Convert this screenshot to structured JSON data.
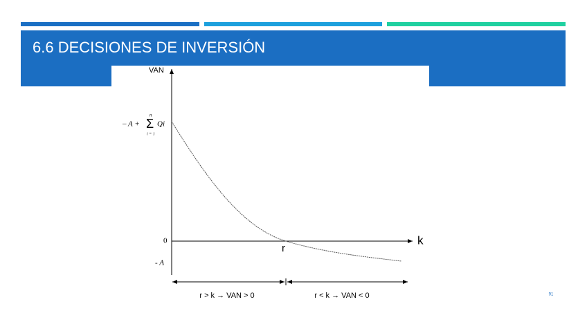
{
  "header": {
    "title": "6.6 DECISIONES DE INVERSIÓN"
  },
  "diagram": {
    "y_axis_label": "VAN",
    "x_axis_label": "k",
    "intercept_label": {
      "prefix": "– A +",
      "sum": "Σ",
      "upper": "n",
      "lower": "i = 1",
      "term": "Qi"
    },
    "zero_label": "0",
    "minus_a_label": "- A",
    "root_label": "r",
    "left_region": "r > k  → VAN > 0",
    "right_region": "r < k  → VAN < 0"
  },
  "page_number": "91"
}
